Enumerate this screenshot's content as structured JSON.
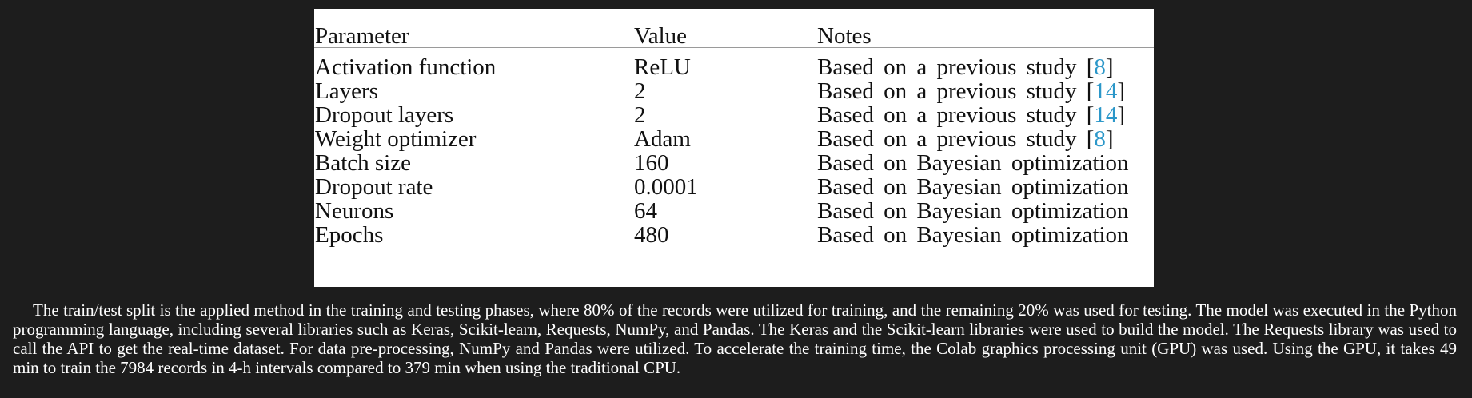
{
  "table": {
    "headers": {
      "parameter": "Parameter",
      "value": "Value",
      "notes": "Notes"
    },
    "rows": [
      {
        "parameter": "Activation function",
        "value": "ReLU",
        "note": "Based on a previous study [",
        "ref": "8",
        "close": "]"
      },
      {
        "parameter": "Layers",
        "value": "2",
        "note": "Based on a previous study [",
        "ref": "14",
        "close": "]"
      },
      {
        "parameter": "Dropout layers",
        "value": "2",
        "note": "Based on a previous study [",
        "ref": "14",
        "close": "]"
      },
      {
        "parameter": "Weight optimizer",
        "value": "Adam",
        "note": "Based on a previous study [",
        "ref": "8",
        "close": "]"
      },
      {
        "parameter": "Batch size",
        "value": "160",
        "note": "Based on Bayesian optimization",
        "ref": "",
        "close": ""
      },
      {
        "parameter": "Dropout rate",
        "value": "0.0001",
        "note": "Based on Bayesian optimization",
        "ref": "",
        "close": ""
      },
      {
        "parameter": "Neurons",
        "value": "64",
        "note": "Based on Bayesian optimization",
        "ref": "",
        "close": ""
      },
      {
        "parameter": "Epochs",
        "value": "480",
        "note": "Based on Bayesian optimization",
        "ref": "",
        "close": ""
      }
    ]
  },
  "body_text": "The train/test split is the applied method in the training and testing phases, where 80% of the records were utilized for training, and the remaining 20% was used for testing. The model was executed in the Python programming language, including several libraries such as Keras, Scikit-learn, Requests, NumPy, and Pandas. The Keras and the Scikit-learn libraries were used to build the model. The Requests library was used to call the API to get the real-time dataset. For data pre-processing, NumPy and Pandas were utilized. To accelerate the training time, the Colab graphics processing unit (GPU) was used. Using the GPU, it takes 49 min to train the 7984 records in 4-h intervals compared to 379 min when using the traditional CPU."
}
